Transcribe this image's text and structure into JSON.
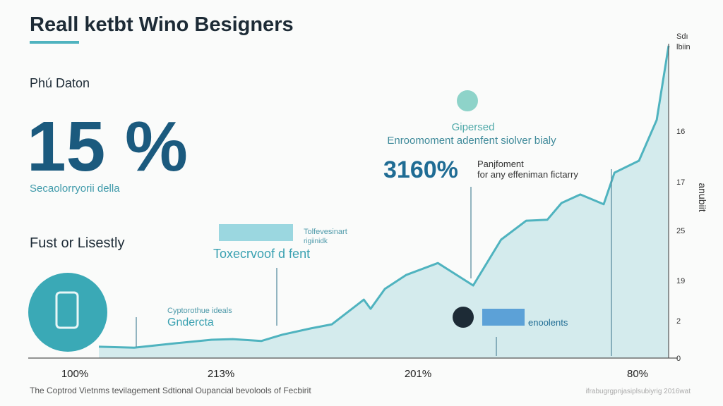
{
  "header": {
    "title": "Reall ketbt Wino Besigners"
  },
  "stat": {
    "label": "Phú Daton",
    "value": "15 %",
    "caption": "Secaolorryorii della"
  },
  "section": {
    "label": "Fust or Lisestly"
  },
  "callouts": {
    "top": {
      "small": "Gipersed",
      "line": "Enroomoment adenfent siolver bialy",
      "value": "3160%",
      "note1": "Panjfoment",
      "note2": "for any effeniman fictarry"
    },
    "middle": {
      "small1": "Tolfevesinart",
      "small2": "rigiinidk",
      "line": "Toxecrvoof d fent"
    },
    "left": {
      "small": "Cyptorothue ideals",
      "line": "Gndercta"
    },
    "bottom": {
      "line": "enoolents"
    }
  },
  "chart_data": {
    "type": "area",
    "color": "#4fb3bf",
    "x": [
      0,
      6.2,
      13.6,
      19.8,
      23.5,
      28.5,
      32.2,
      37.2,
      40.9,
      46.5,
      47.7,
      50.2,
      53.9,
      59.5,
      65.7,
      70.6,
      75.0,
      78.7,
      81.2,
      84.5,
      88.6,
      90.5,
      94.8,
      97.9,
      100
    ],
    "values": [
      3.6,
      3.3,
      4.7,
      5.8,
      6.0,
      5.4,
      7.4,
      9.4,
      10.7,
      18.5,
      15.6,
      21.9,
      26.3,
      30.1,
      23.0,
      37.5,
      43.5,
      43.8,
      49.1,
      51.8,
      48.7,
      58.7,
      62.5,
      75.4,
      98.9
    ],
    "xlim": [
      0,
      100
    ],
    "ylim": [
      0,
      100
    ],
    "x_labels": [
      "100%",
      "213%",
      "201%",
      "80%"
    ],
    "right_labels": [
      "Sdı",
      "lbiin",
      "16",
      "17",
      "25",
      "19",
      "2",
      "0"
    ],
    "right_axis_title": "anubiit"
  },
  "footer": {
    "left": "The Coptrod Vietnms tevilagement Sdtional Oupancial bevolools of Fecbirit",
    "right": "ifrabugrgpnjasiplsubiyrig 2016wat"
  }
}
